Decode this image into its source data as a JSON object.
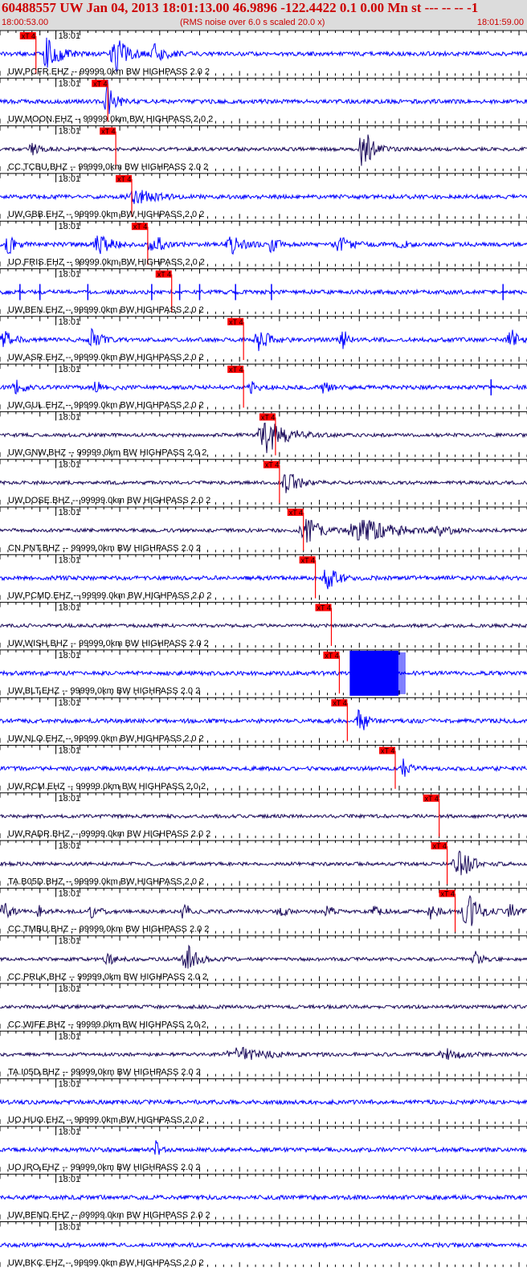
{
  "header": {
    "title": "60488557 UW Jan 04, 2013 18:01:13.00   46.9896 -122.4422  0.1 0.00 Mn st --- -- --   -1",
    "start_time": "18:00:53.00",
    "subtitle": "(RMS noise over 6.0 s scaled 20.0 x)",
    "end_time": "18:01:59.00"
  },
  "colors": {
    "header_text": "#cc0000",
    "header_bg": "#dcdcdc",
    "pick": "#ff0000",
    "trace_blue": "#0000ff",
    "trace_dark": "#1a0a5a"
  },
  "chart_data": {
    "type": "line",
    "x_range_seconds": [
      0,
      66
    ],
    "minute_marker": {
      "label": "18:01",
      "seconds": 7
    },
    "pick_label": "xT 4",
    "traces": [
      {
        "label": "UW.PCFR.EHZ -- 99999.0km BW  HIGHPASS  2.0  2",
        "pick": 4.5,
        "color": "blue",
        "bursts": [
          [
            6,
            1.0,
            1.5
          ],
          [
            14.5,
            1.0,
            1.6
          ],
          [
            19.5,
            0.6,
            1.2
          ]
        ]
      },
      {
        "label": "UW.MOON.EHZ -- 99999.0km BW  HIGHPASS  2.0  2",
        "pick": 13.5,
        "color": "blue",
        "bursts": [
          [
            13.5,
            1.2,
            1.0
          ]
        ]
      },
      {
        "label": "CC.TCBU.BHZ -- 99999.0km BW  HIGHPASS  2.0  2",
        "pick": 14.5,
        "color": "dark",
        "bursts": [
          [
            45.5,
            1.3,
            1.3
          ],
          [
            4,
            0.3,
            1.0
          ]
        ]
      },
      {
        "label": "UW.GBB.EHZ -- 99999.0km BW  HIGHPASS  2.0  2",
        "pick": 16.5,
        "color": "blue",
        "bursts": [
          [
            17,
            0.4,
            2.5
          ]
        ]
      },
      {
        "label": "UO.FRIS.EHZ -- 99999.0km BW  HIGHPASS  2.0  2",
        "pick": 18.5,
        "color": "blue",
        "bursts": [
          [
            1,
            0.6,
            1.0
          ],
          [
            12.5,
            0.6,
            1.5
          ],
          [
            19,
            1.0,
            1.0
          ],
          [
            29,
            0.5,
            1.5
          ],
          [
            34,
            0.4,
            1.0
          ],
          [
            42.5,
            0.4,
            1.5
          ],
          [
            50,
            0.3,
            1.0
          ]
        ]
      },
      {
        "label": "UW.BEN.EHZ -- 99999.0km BW  HIGHPASS  2.0  2",
        "pick": 21.5,
        "color": "blue",
        "spikes": [
          2.5,
          5,
          11,
          19,
          22.5,
          25,
          29.5,
          34,
          63
        ]
      },
      {
        "label": "UW.ASR.EHZ -- 99999.0km BW  HIGHPASS  2.0  2",
        "pick": 30.5,
        "color": "blue",
        "bursts": [
          [
            0.5,
            0.5,
            1.2
          ],
          [
            11.5,
            0.6,
            1.2
          ],
          [
            32.5,
            0.6,
            1.5
          ],
          [
            43,
            0.5,
            1.0
          ],
          [
            64,
            0.6,
            1.0
          ]
        ]
      },
      {
        "label": "UW.GUL.EHZ -- 99999.0km BW  HIGHPASS  2.0  2",
        "pick": 30.5,
        "color": "blue",
        "bursts": [
          [
            2,
            0.4,
            1.0
          ],
          [
            12,
            0.3,
            1.2
          ],
          [
            31.5,
            0.3,
            1.0
          ],
          [
            40.5,
            0.3,
            1.0
          ]
        ],
        "spikes": [
          61.5
        ]
      },
      {
        "label": "UW.GNW.BHZ -- 99999.0km BW  HIGHPASS  2.0  2",
        "pick": 34.5,
        "color": "dark",
        "bursts": [
          [
            33.5,
            1.1,
            2.5
          ]
        ]
      },
      {
        "label": "UW.DOSE.BHZ -- 99999.0km BW  HIGHPASS  2.0  2",
        "pick": 35.0,
        "color": "dark",
        "bursts": [
          [
            36,
            0.7,
            1.5
          ]
        ]
      },
      {
        "label": "CN.PNT.BHZ -- 99999.0km BW  HIGHPASS  2.0  2",
        "pick": 38.0,
        "color": "dark",
        "bursts": [
          [
            38.5,
            0.7,
            2.0
          ],
          [
            45.5,
            0.6,
            4.5
          ],
          [
            55,
            0.25,
            2.0
          ]
        ]
      },
      {
        "label": "UW.PCMD.EHZ -- 99999.0km BW  HIGHPASS  2.0  2",
        "pick": 39.5,
        "color": "blue",
        "bursts": [
          [
            41,
            0.6,
            1.5
          ]
        ]
      },
      {
        "label": "UW.WISH.BHZ -- 99999.0km BW  HIGHPASS  2.0  2",
        "pick": 41.5,
        "color": "dark",
        "bursts": []
      },
      {
        "label": "UW.BLT.EHZ -- 99999.0km BW  HIGHPASS  2.0  2",
        "pick": 42.5,
        "color": "blue",
        "block": [
          43.8,
          50.5
        ]
      },
      {
        "label": "UW.NLO.EHZ -- 99999.0km BW  HIGHPASS  2.0  2",
        "pick": 43.5,
        "color": "blue",
        "bursts": [
          [
            45,
            1.0,
            0.8
          ]
        ]
      },
      {
        "label": "UW.RCM.EHZ -- 99999.0km BW  HIGHPASS  2.0  2",
        "pick": 49.5,
        "color": "blue",
        "bursts": [
          [
            50.5,
            0.5,
            0.8
          ]
        ]
      },
      {
        "label": "UW.RADR.BHZ -- 99999.0km BW  HIGHPASS  2.0  2",
        "pick": 55.0,
        "color": "dark",
        "bursts": []
      },
      {
        "label": "TA.B05D.BHZ -- 99999.0km BW  HIGHPASS  2.0  2",
        "pick": 56.0,
        "color": "dark",
        "bursts": [
          [
            57.5,
            1.0,
            1.5
          ]
        ]
      },
      {
        "label": "CC.TMBU.BHZ -- 99999.0km BW  HIGHPASS  2.0  2",
        "pick": 57.0,
        "color": "dark",
        "bursts": [
          [
            0.5,
            0.5,
            1.0
          ],
          [
            5,
            0.4,
            1.0
          ],
          [
            11.5,
            0.4,
            1.0
          ],
          [
            23,
            0.6,
            0.8
          ],
          [
            35,
            0.4,
            0.8
          ],
          [
            41,
            0.4,
            0.8
          ],
          [
            47,
            0.4,
            0.8
          ],
          [
            54,
            0.4,
            1.0
          ],
          [
            58.5,
            1.2,
            1.5
          ],
          [
            64,
            0.4,
            1.0
          ]
        ]
      },
      {
        "label": "CC.PRLK.BHZ -- 99999.0km BW  HIGHPASS  2.0  2",
        "pick": null,
        "color": "dark",
        "bursts": [
          [
            13.5,
            0.3,
            1.0
          ],
          [
            23.5,
            0.8,
            1.5
          ],
          [
            59.5,
            0.5,
            0.8
          ]
        ]
      },
      {
        "label": "CC.WIFE.BHZ -- 99999.0km BW  HIGHPASS  2.0  2",
        "pick": null,
        "color": "dark",
        "bursts": []
      },
      {
        "label": "TA.I05D.BHZ -- 99999.0km BW  HIGHPASS  2.0  2",
        "pick": null,
        "color": "dark",
        "bursts": [
          [
            30,
            0.35,
            4.0
          ],
          [
            56,
            0.35,
            2.0
          ]
        ]
      },
      {
        "label": "UO.HUO.EHZ -- 99999.0km BW  HIGHPASS  2.0  2",
        "pick": null,
        "color": "blue",
        "bursts": []
      },
      {
        "label": "UO.IRO.EHZ -- 99999.0km BW  HIGHPASS  2.0  2",
        "pick": null,
        "color": "blue",
        "bursts": [
          [
            19.5,
            0.5,
            0.5
          ]
        ]
      },
      {
        "label": "UW.BEND.EHZ -- 99999.0km BW  HIGHPASS  2.0  2",
        "pick": null,
        "color": "blue",
        "bursts": []
      },
      {
        "label": "UW.BKC.EHZ -- 99999.0km BW  HIGHPASS  2.0  2",
        "pick": null,
        "color": "blue",
        "bursts": []
      }
    ]
  }
}
